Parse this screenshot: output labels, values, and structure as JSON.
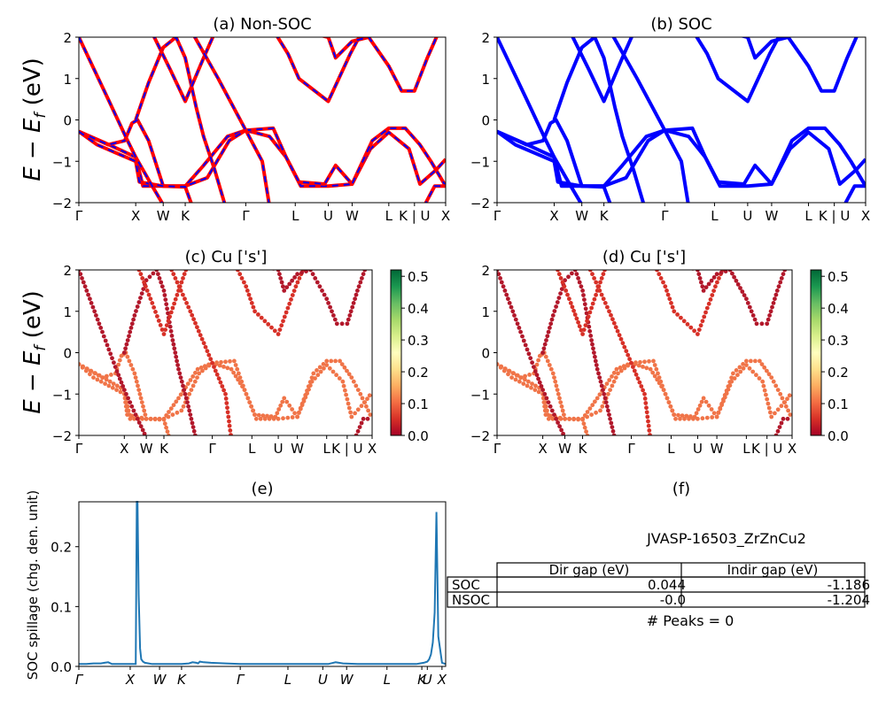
{
  "colors": {
    "red": "#ff0000",
    "blue": "#0000ff",
    "line": "#1f77b4"
  },
  "band_labels": [
    "Γ",
    "X",
    "W",
    "K",
    "Γ",
    "L",
    "U",
    "W",
    "L",
    "K | U",
    "X"
  ],
  "yticks": [
    "2",
    "1",
    "0",
    "−1",
    "−2"
  ],
  "ylabel_band": "E − E_f (eV)",
  "colorbar": {
    "colormap": "RdYlGn",
    "ticks": [
      "0.5",
      "0.4",
      "0.3",
      "0.2",
      "0.1",
      "0.0"
    ],
    "range": [
      0,
      0.52
    ]
  },
  "chart_data": [
    {
      "type": "line",
      "title": "(a) Non-SOC",
      "ylabel": "E − E_f (eV)",
      "ylim": [
        -2,
        2
      ],
      "xticks": [
        "Γ",
        "X",
        "W",
        "K",
        "Γ",
        "L",
        "U",
        "W",
        "L",
        "K | U",
        "X"
      ],
      "series": [
        {
          "color": "red",
          "style": "solid"
        },
        {
          "color": "blue",
          "style": "dashed"
        }
      ]
    },
    {
      "type": "line",
      "title": "(b) SOC",
      "ylim": [
        -2,
        2
      ],
      "xticks": [
        "Γ",
        "X",
        "W",
        "K",
        "Γ",
        "L",
        "U",
        "W",
        "L",
        "K | U",
        "X"
      ],
      "series": [
        {
          "color": "blue",
          "style": "solid"
        }
      ]
    },
    {
      "type": "scatter",
      "title": "(c)  Cu ['s']",
      "ylabel": "E − E_f (eV)",
      "ylim": [
        -2,
        2
      ],
      "xticks": [
        "Γ",
        "X",
        "W",
        "K",
        "Γ",
        "L",
        "U",
        "W",
        "L",
        "K | U",
        "X"
      ],
      "colorbar_range": [
        0.0,
        0.5
      ]
    },
    {
      "type": "scatter",
      "title": "(d) Cu ['s']",
      "ylim": [
        -2,
        2
      ],
      "xticks": [
        "Γ",
        "X",
        "W",
        "K",
        "Γ",
        "L",
        "U",
        "W",
        "L",
        "K | U",
        "X"
      ],
      "colorbar_range": [
        0.0,
        0.5
      ]
    },
    {
      "type": "line",
      "title": "(e)",
      "ylabel": "SOC spillage (chg. den. unit)",
      "ylim": [
        0,
        0.275
      ],
      "yticks": [
        "0.0",
        "0.1",
        "0.2"
      ],
      "xticks": [
        "Γ",
        "X",
        "W",
        "K",
        "Γ",
        "L",
        "U",
        "W",
        "L",
        "K",
        "U",
        "X"
      ],
      "x": [
        0,
        0.02,
        0.04,
        0.06,
        0.07,
        0.08,
        0.09,
        0.1,
        0.12,
        0.14,
        0.15,
        0.155,
        0.158,
        0.16,
        0.163,
        0.167,
        0.17,
        0.175,
        0.18,
        0.19,
        0.2,
        0.22,
        0.25,
        0.28,
        0.3,
        0.31,
        0.32,
        0.325,
        0.33,
        0.34,
        0.36,
        0.4,
        0.44,
        0.48,
        0.52,
        0.56,
        0.6,
        0.64,
        0.68,
        0.7,
        0.72,
        0.76,
        0.8,
        0.84,
        0.88,
        0.9,
        0.92,
        0.93,
        0.94,
        0.95,
        0.955,
        0.96,
        0.965,
        0.97,
        0.975,
        0.98,
        0.99,
        1.0
      ],
      "y": [
        0.004,
        0.004,
        0.005,
        0.005,
        0.006,
        0.007,
        0.004,
        0.004,
        0.004,
        0.004,
        0.004,
        0.004,
        0.275,
        0.275,
        0.12,
        0.03,
        0.012,
        0.008,
        0.006,
        0.005,
        0.004,
        0.004,
        0.004,
        0.004,
        0.005,
        0.007,
        0.006,
        0.005,
        0.008,
        0.007,
        0.006,
        0.005,
        0.004,
        0.004,
        0.004,
        0.004,
        0.004,
        0.004,
        0.004,
        0.007,
        0.005,
        0.004,
        0.004,
        0.004,
        0.004,
        0.004,
        0.004,
        0.005,
        0.006,
        0.008,
        0.012,
        0.02,
        0.04,
        0.09,
        0.258,
        0.05,
        0.006,
        0.004
      ]
    },
    {
      "type": "table",
      "title": "(f)",
      "subtitle": "JVASP-16503_ZrZnCu2",
      "columns": [
        "Dir gap (eV)",
        "Indir gap (eV)"
      ],
      "rows": [
        {
          "label": "SOC",
          "values": [
            "0.044",
            "-1.186"
          ]
        },
        {
          "label": "NSOC",
          "values": [
            "-0.0",
            "-1.204"
          ]
        }
      ],
      "footer": "# Peaks = 0"
    }
  ]
}
